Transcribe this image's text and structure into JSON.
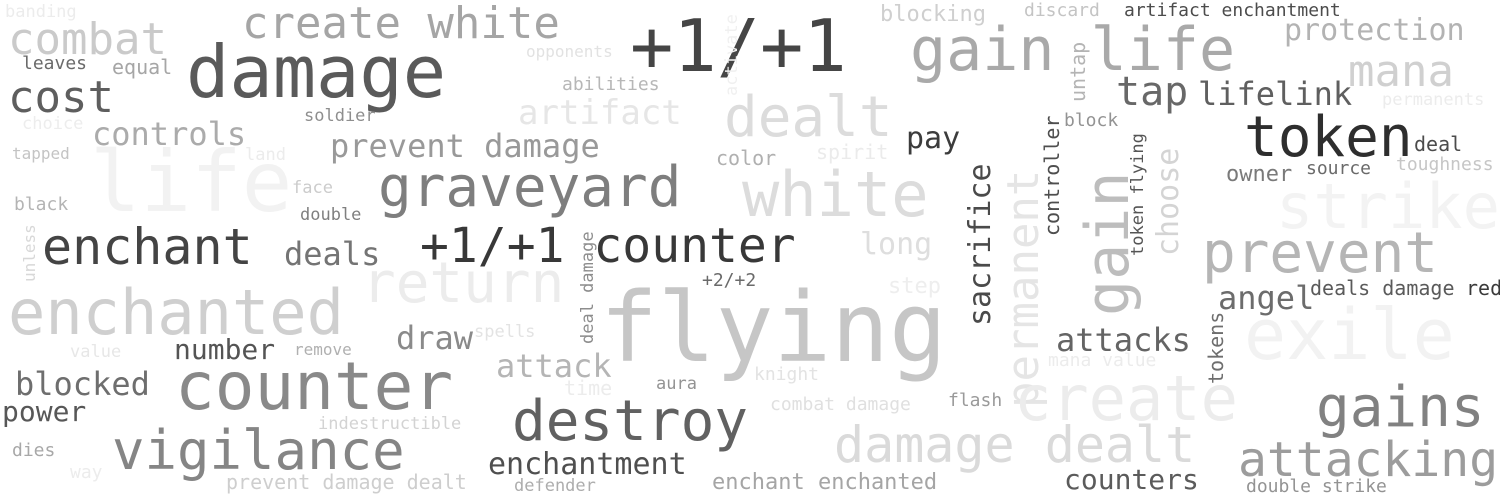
{
  "words": [
    {
      "text": "banding",
      "color": "#ececec"
    },
    {
      "text": "combat",
      "color": "#cacaca"
    },
    {
      "text": "leaves",
      "color": "#6a6a6a"
    },
    {
      "text": "equal",
      "color": "#a6a6a6"
    },
    {
      "text": "cost",
      "color": "#5e5e5e"
    },
    {
      "text": "choice",
      "color": "#ededed"
    },
    {
      "text": "controls",
      "color": "#ababab"
    },
    {
      "text": "tapped",
      "color": "#c4c4c4"
    },
    {
      "text": "land",
      "color": "#ececec"
    },
    {
      "text": "life",
      "color": "#f2f2f2"
    },
    {
      "text": "black",
      "color": "#b4b4b4"
    },
    {
      "text": "face",
      "color": "#cccccc"
    },
    {
      "text": "double",
      "color": "#7f7f7f"
    },
    {
      "text": "enchant",
      "color": "#444444"
    },
    {
      "text": "deals",
      "color": "#747474"
    },
    {
      "text": "unless",
      "color": "#d8d8d8"
    },
    {
      "text": "enchanted",
      "color": "#cfcfcf"
    },
    {
      "text": "value",
      "color": "#e7e7e7"
    },
    {
      "text": "number",
      "color": "#545454"
    },
    {
      "text": "remove",
      "color": "#b0b0b0"
    },
    {
      "text": "blocked",
      "color": "#6e6e6e"
    },
    {
      "text": "counter",
      "color": "#898989"
    },
    {
      "text": "power",
      "color": "#575757"
    },
    {
      "text": "indestructible",
      "color": "#d3d3d3"
    },
    {
      "text": "dies",
      "color": "#a8a8a8"
    },
    {
      "text": "vigilance",
      "color": "#858585"
    },
    {
      "text": "way",
      "color": "#ececec"
    },
    {
      "text": "prevent damage dealt",
      "color": "#cecece"
    },
    {
      "text": "create white",
      "color": "#a5a5a5"
    },
    {
      "text": "damage",
      "color": "#5a5a5a"
    },
    {
      "text": "opponents",
      "color": "#e2e2e2"
    },
    {
      "text": "soldier",
      "color": "#8e8e8e"
    },
    {
      "text": "abilities",
      "color": "#b7b7b7"
    },
    {
      "text": "artifact",
      "color": "#e6e6e6"
    },
    {
      "text": "prevent damage",
      "color": "#999999"
    },
    {
      "text": "graveyard",
      "color": "#7e7e7e"
    },
    {
      "text": "+1/+1",
      "color": "#454545"
    },
    {
      "text": "+1/+1 counter",
      "color": "#383838"
    },
    {
      "text": "activate",
      "color": "#f0f0f0"
    },
    {
      "text": "return",
      "color": "#ececec"
    },
    {
      "text": "deal damage",
      "color": "#8d8d8d"
    },
    {
      "text": "+2/+2",
      "color": "#6a6a6a"
    },
    {
      "text": "spells",
      "color": "#e3e3e3"
    },
    {
      "text": "draw",
      "color": "#8a8a8a"
    },
    {
      "text": "attack",
      "color": "#b5b5b5"
    },
    {
      "text": "time",
      "color": "#ececec"
    },
    {
      "text": "aura",
      "color": "#939393"
    },
    {
      "text": "destroy",
      "color": "#616161"
    },
    {
      "text": "enchantment",
      "color": "#4f4f4f"
    },
    {
      "text": "defender",
      "color": "#adadad"
    },
    {
      "text": "blocking",
      "color": "#cfcfcf"
    },
    {
      "text": "discard",
      "color": "#c4c4c4"
    },
    {
      "text": "artifact enchantment",
      "color": "#4c4c4c"
    },
    {
      "text": "gain life",
      "color": "#a9a9a9"
    },
    {
      "text": "protection",
      "color": "#b3b3b3"
    },
    {
      "text": "mana",
      "color": "#d0d0d0"
    },
    {
      "text": "dealt",
      "color": "#dcdcdc"
    },
    {
      "text": "color",
      "color": "#b0b0b0"
    },
    {
      "text": "spirit",
      "color": "#ebebeb"
    },
    {
      "text": "white",
      "color": "#dcdcdc"
    },
    {
      "text": "long",
      "color": "#dedede"
    },
    {
      "text": "step",
      "color": "#eeeeee"
    },
    {
      "text": "flying",
      "color": "#c6c6c6"
    },
    {
      "text": "knight",
      "color": "#e3e3e3"
    },
    {
      "text": "combat damage",
      "color": "#e0e0e0"
    },
    {
      "text": "flash",
      "color": "#9a9a9a"
    },
    {
      "text": "damage dealt",
      "color": "#dadada"
    },
    {
      "text": "enchant enchanted",
      "color": "#a5a5a5"
    },
    {
      "text": "pay",
      "color": "#3c3c3c"
    },
    {
      "text": "sacrifice",
      "color": "#4a4a4a"
    },
    {
      "text": "permanent",
      "color": "#e5e5e5"
    },
    {
      "text": "untap",
      "color": "#b4b4b4"
    },
    {
      "text": "controller",
      "color": "#4e4e4e"
    },
    {
      "text": "block",
      "color": "#939393"
    },
    {
      "text": "gain",
      "color": "#bdbdbd"
    },
    {
      "text": "token flying",
      "color": "#555555"
    },
    {
      "text": "choose",
      "color": "#d4d4d4"
    },
    {
      "text": "mana value",
      "color": "#ececec"
    },
    {
      "text": "attacks",
      "color": "#646464"
    },
    {
      "text": "tokens",
      "color": "#6e6e6e"
    },
    {
      "text": "create",
      "color": "#ececec"
    },
    {
      "text": "counters",
      "color": "#5b5b5b"
    },
    {
      "text": "tap",
      "color": "#686868"
    },
    {
      "text": "lifelink",
      "color": "#5f5f5f"
    },
    {
      "text": "permanents",
      "color": "#ececec"
    },
    {
      "text": "token",
      "color": "#2e2e2e"
    },
    {
      "text": "deal",
      "color": "#4c4c4c"
    },
    {
      "text": "owner",
      "color": "#7a7a7a"
    },
    {
      "text": "source",
      "color": "#6a6a6a"
    },
    {
      "text": "toughness",
      "color": "#c6c6c6"
    },
    {
      "text": "strike",
      "color": "#f3f3f3"
    },
    {
      "text": "prevent",
      "color": "#b5b5b5"
    },
    {
      "text": "angel",
      "color": "#6c6c6c"
    },
    {
      "text": "deals damage",
      "color": "#5a5a5a"
    },
    {
      "text": "red",
      "color": "#3a3a3a"
    },
    {
      "text": "exile",
      "color": "#f2f2f2"
    },
    {
      "text": "gains",
      "color": "#818181"
    },
    {
      "text": "attacking",
      "color": "#9c9c9c"
    },
    {
      "text": "double strike",
      "color": "#939393"
    }
  ]
}
